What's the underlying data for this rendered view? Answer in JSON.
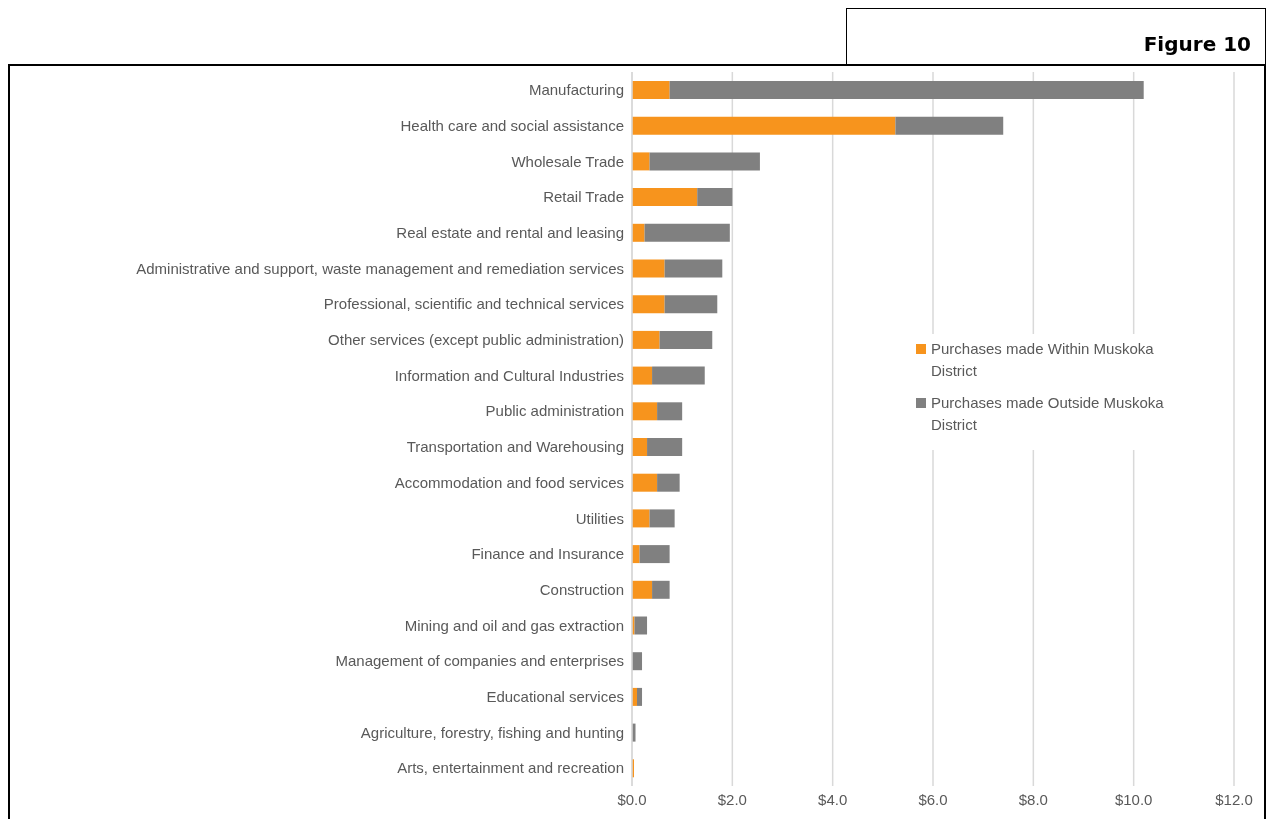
{
  "chart_data": {
    "type": "bar",
    "title": "Figure 10",
    "orientation": "horizontal",
    "stacked": true,
    "categories": [
      "Manufacturing",
      "Health care and social assistance",
      "Wholesale Trade",
      "Retail Trade",
      "Real estate and rental and leasing",
      "Administrative and support, waste management and remediation services",
      "Professional, scientific and technical services",
      "Other services (except public administration)",
      "Information and Cultural Industries",
      "Public administration",
      "Transportation and Warehousing",
      "Accommodation and food services",
      "Utilities",
      "Finance and Insurance",
      "Construction",
      "Mining and oil and gas extraction",
      "Management of companies and enterprises",
      "Educational services",
      "Agriculture, forestry, fishing and hunting",
      "Arts, entertainment and recreation"
    ],
    "series": [
      {
        "name": "Purchases made Within Muskoka District",
        "color": "#f7941d",
        "values": [
          0.75,
          5.25,
          0.35,
          1.3,
          0.25,
          0.65,
          0.65,
          0.55,
          0.4,
          0.5,
          0.3,
          0.5,
          0.35,
          0.15,
          0.4,
          0.05,
          0,
          0.1,
          0,
          0.04
        ]
      },
      {
        "name": "Purchases made Outside Muskoka District",
        "color": "#808080",
        "values": [
          9.45,
          2.15,
          2.2,
          0.7,
          1.7,
          1.15,
          1.05,
          1.05,
          1.05,
          0.5,
          0.7,
          0.45,
          0.5,
          0.6,
          0.35,
          0.25,
          0.2,
          0.1,
          0.07,
          null
        ]
      }
    ],
    "xlim": [
      0,
      12
    ],
    "xticks": [
      {
        "value": 0,
        "label": "$0.0"
      },
      {
        "value": 2,
        "label": "$2.0"
      },
      {
        "value": 4,
        "label": "$4.0"
      },
      {
        "value": 6,
        "label": "$6.0"
      },
      {
        "value": 8,
        "label": "$8.0"
      },
      {
        "value": 10,
        "label": "$10.0"
      },
      {
        "value": 12,
        "label": "$12.0"
      }
    ],
    "grid": "x",
    "legend": "right"
  }
}
